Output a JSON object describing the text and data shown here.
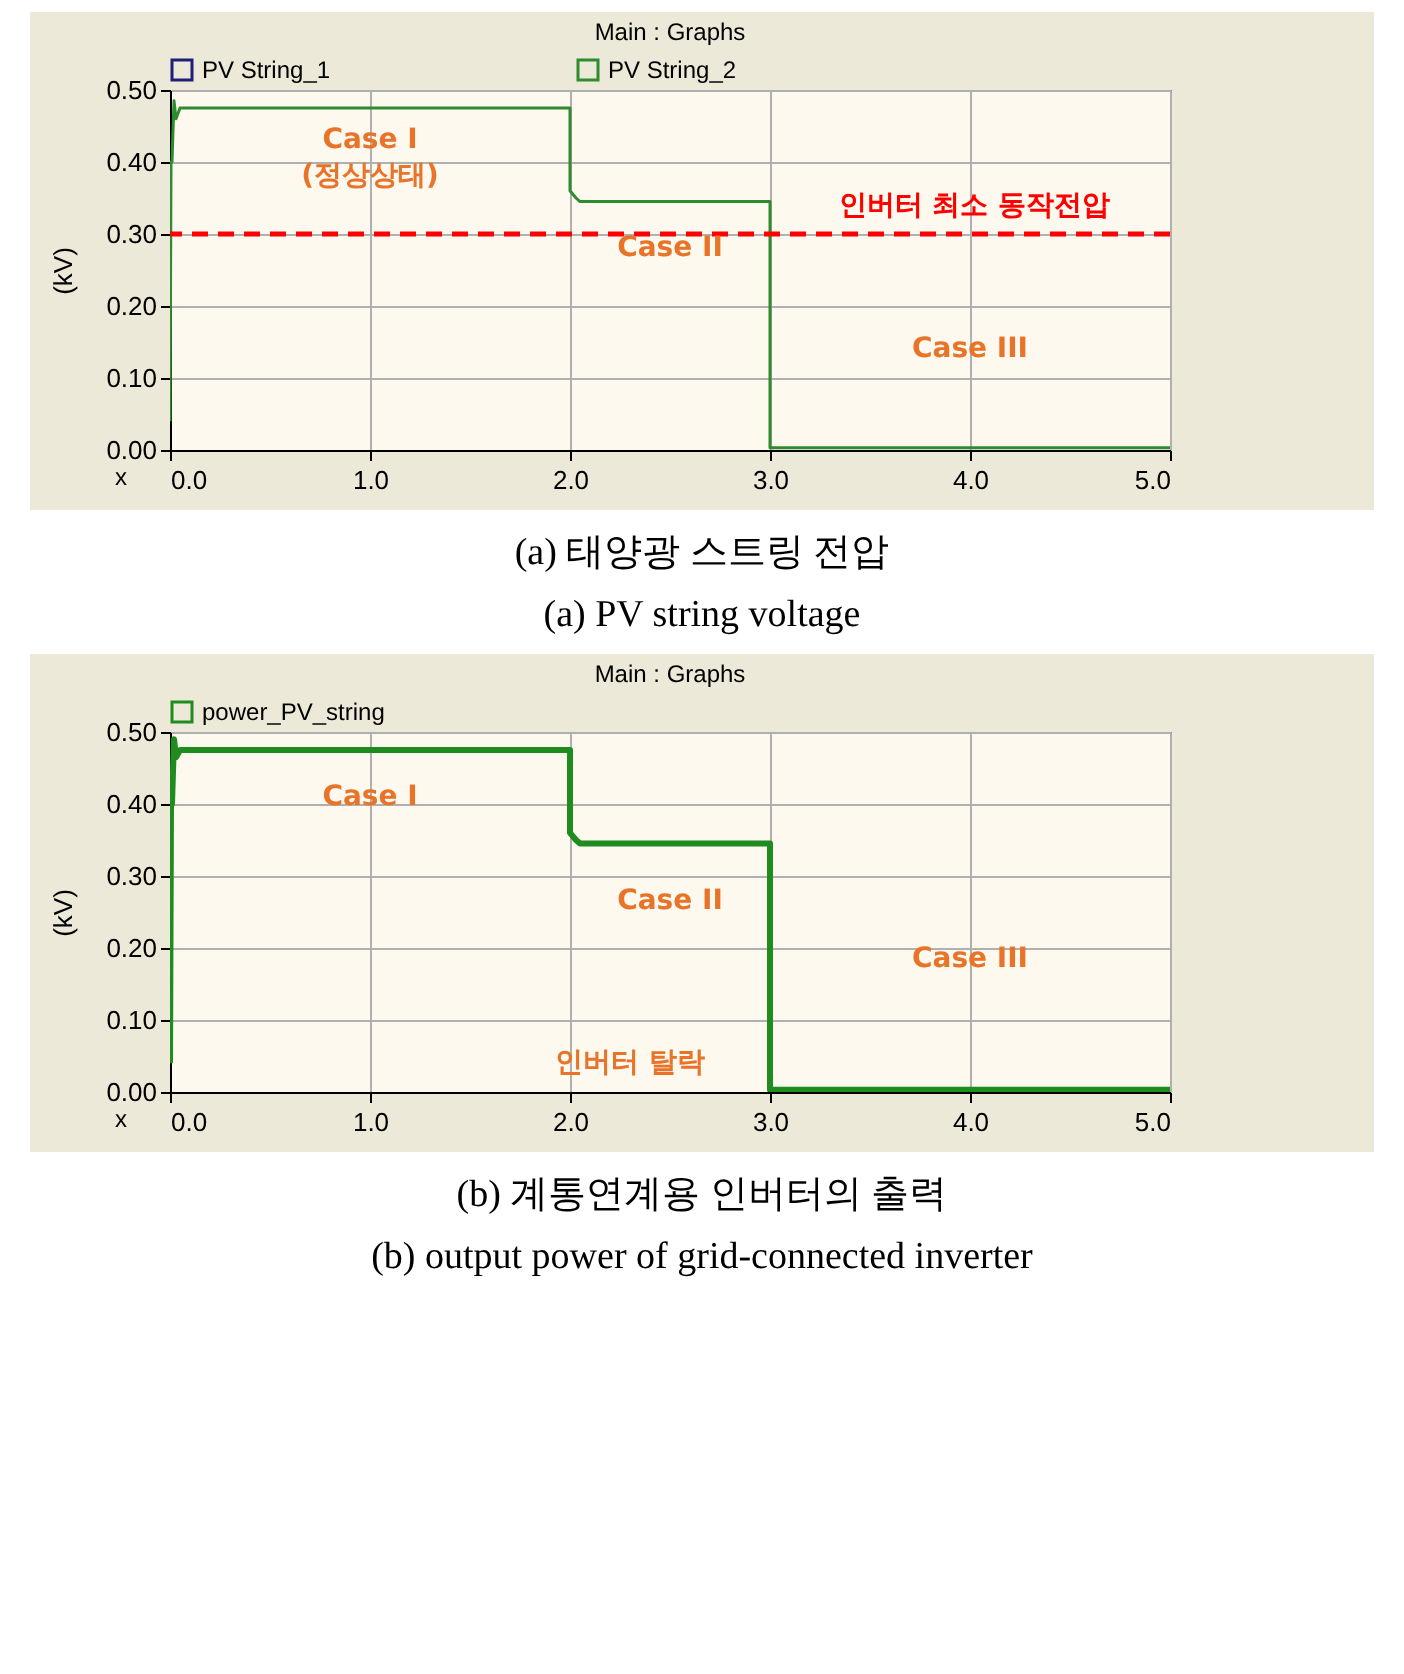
{
  "chart_data": [
    {
      "type": "line",
      "title": "Main : Graphs",
      "xlabel": "x",
      "ylabel": "(kV)",
      "xlim": [
        0,
        5
      ],
      "ylim": [
        0,
        0.5
      ],
      "xticks": [
        {
          "value": 0,
          "label": "0.0"
        },
        {
          "value": 1,
          "label": "1.0"
        },
        {
          "value": 2,
          "label": "2.0"
        },
        {
          "value": 3,
          "label": "3.0"
        },
        {
          "value": 4,
          "label": "4.0"
        },
        {
          "value": 5,
          "label": "5.0"
        }
      ],
      "yticks": [
        {
          "value": 0,
          "label": "0.00"
        },
        {
          "value": 0.1,
          "label": "0.10"
        },
        {
          "value": 0.2,
          "label": "0.20"
        },
        {
          "value": 0.3,
          "label": "0.30"
        },
        {
          "value": 0.4,
          "label": "0.40"
        },
        {
          "value": 0.5,
          "label": "0.50"
        }
      ],
      "x": [
        0,
        0.005,
        0.01,
        0.02,
        0.03,
        0.05,
        2.0,
        2.0,
        2.03,
        2.05,
        3.0,
        3.0,
        5.0
      ],
      "series": [
        {
          "name": "PV String_1",
          "color": "#1f1f7a",
          "values": [
            null,
            null,
            null,
            null,
            null,
            null,
            null,
            null,
            null,
            null,
            null,
            null,
            null
          ]
        },
        {
          "name": "PV String_2",
          "color": "#2e8b2e",
          "values": [
            0.04,
            0.4,
            0.4,
            0.485,
            0.46,
            0.475,
            0.475,
            0.36,
            0.35,
            0.345,
            0.345,
            0.003,
            0.003
          ]
        }
      ],
      "ref_lines": [
        {
          "axis": "y",
          "value": 0.3,
          "label": "인버터 최소 동작전압",
          "color": "#ff0000",
          "line_style": "dashed"
        }
      ],
      "annotations": [
        "Case I\n(정상상태)",
        "Case II",
        "Case III",
        "(a) 태양광 스트링 전압",
        "(a) PV string voltage"
      ],
      "grid": true,
      "legend": "top left",
      "line_style": "solid"
    },
    {
      "type": "line",
      "title": "Main : Graphs",
      "xlabel": "x",
      "ylabel": "(kV)",
      "xlim": [
        0,
        5
      ],
      "ylim": [
        0,
        0.5
      ],
      "xticks": [
        {
          "value": 0,
          "label": "0.0"
        },
        {
          "value": 1,
          "label": "1.0"
        },
        {
          "value": 2,
          "label": "2.0"
        },
        {
          "value": 3,
          "label": "3.0"
        },
        {
          "value": 4,
          "label": "4.0"
        },
        {
          "value": 5,
          "label": "5.0"
        }
      ],
      "yticks": [
        {
          "value": 0,
          "label": "0.00"
        },
        {
          "value": 0.1,
          "label": "0.10"
        },
        {
          "value": 0.2,
          "label": "0.20"
        },
        {
          "value": 0.3,
          "label": "0.30"
        },
        {
          "value": 0.4,
          "label": "0.40"
        },
        {
          "value": 0.5,
          "label": "0.50"
        }
      ],
      "x": [
        0,
        0.005,
        0.01,
        0.02,
        0.03,
        0.05,
        2.0,
        2.0,
        2.03,
        2.05,
        3.0,
        3.0,
        5.0
      ],
      "series": [
        {
          "name": "power_PV_string",
          "color": "#1e8c1e",
          "values": [
            0.04,
            0.4,
            0.4,
            0.49,
            0.465,
            0.475,
            0.475,
            0.36,
            0.35,
            0.345,
            0.345,
            0.003,
            0.003
          ]
        }
      ],
      "annotations": [
        "Case I",
        "Case II",
        "Case III",
        "인버터 탈락",
        "(b) 계통연계용 인버터의 출력",
        "(b) output power of grid-connected inverter"
      ],
      "grid": true,
      "legend": "top left",
      "line_style": "solid"
    }
  ]
}
